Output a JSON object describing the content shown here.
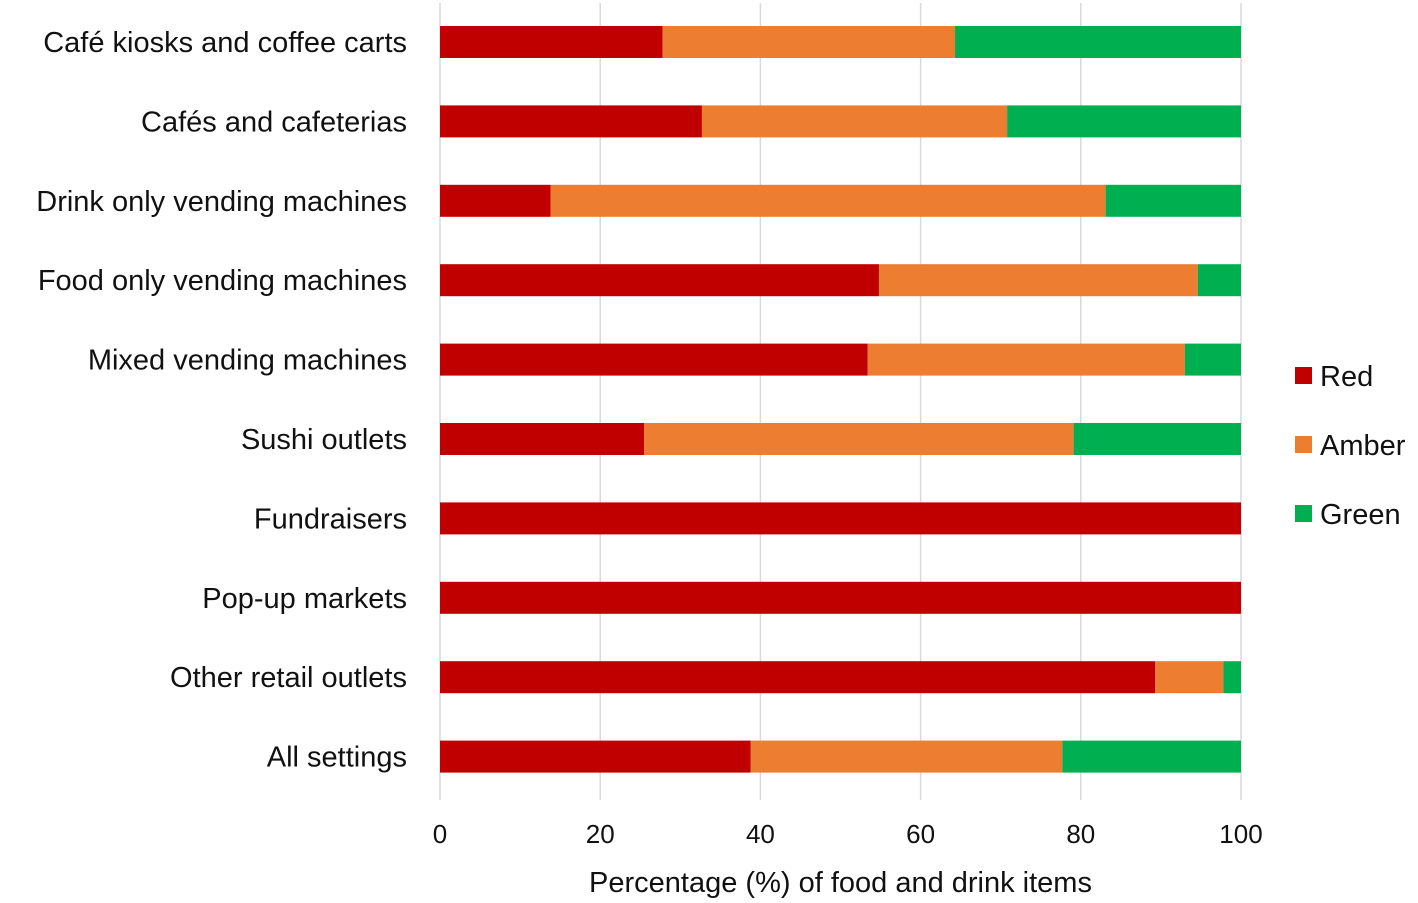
{
  "chart_data": {
    "type": "bar",
    "orientation": "horizontal",
    "stacked": true,
    "title": "",
    "xlabel": "Percentage (%) of food and drink items",
    "ylabel": "",
    "xlim": [
      0,
      100
    ],
    "xticks": [
      "0",
      "20",
      "40",
      "60",
      "80",
      "100"
    ],
    "grid": true,
    "legend_position": "right",
    "categories": [
      "Café kiosks and coffee carts",
      "Cafés and cafeterias",
      "Drink only vending machines",
      "Food only vending machines",
      "Mixed vending machines",
      "Sushi outlets",
      "Fundraisers",
      "Pop-up markets",
      "Other retail outlets",
      "All settings"
    ],
    "series": [
      {
        "name": "Red",
        "color": "#c00000",
        "values": [
          27.8,
          32.7,
          13.8,
          54.8,
          53.4,
          25.5,
          100,
          100,
          89.3,
          38.8
        ]
      },
      {
        "name": "Amber",
        "color": "#ed7d31",
        "values": [
          36.5,
          38.1,
          69.3,
          39.8,
          39.6,
          53.6,
          0,
          0,
          8.5,
          38.9
        ]
      },
      {
        "name": "Green",
        "color": "#00b050",
        "values": [
          35.7,
          29.2,
          16.9,
          5.4,
          7.0,
          20.9,
          0,
          0,
          2.2,
          22.3
        ]
      }
    ]
  }
}
